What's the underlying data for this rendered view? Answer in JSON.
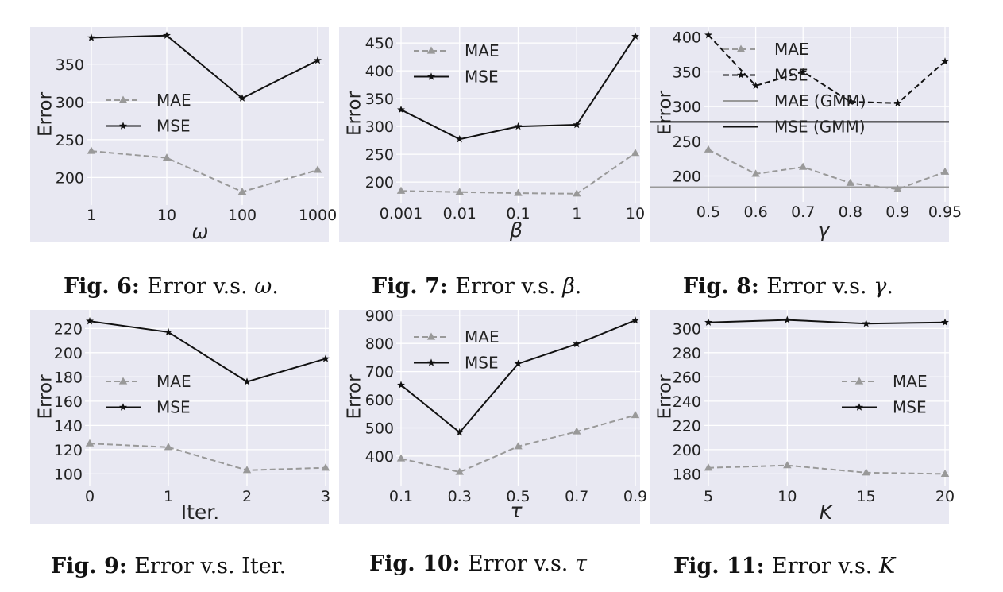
{
  "chart_data": [
    {
      "type": "line",
      "xlabel": "ω",
      "ylabel": "Error",
      "xscale": "log",
      "x": [
        1,
        10,
        100,
        1000
      ],
      "x_tick_labels": [
        "1",
        "10",
        "100",
        "1000"
      ],
      "ylim": [
        172,
        395
      ],
      "y_ticks": [
        200,
        250,
        300,
        350
      ],
      "legend_position": "center-left",
      "series": [
        {
          "name": "MAE",
          "values": [
            235,
            226,
            181,
            210
          ],
          "style": "dashed",
          "marker": "triangle",
          "color": "#999999"
        },
        {
          "name": "MSE",
          "values": [
            385,
            388,
            305,
            355
          ],
          "style": "solid",
          "marker": "star",
          "color": "#111111"
        }
      ],
      "caption": {
        "label": "Fig. 6:",
        "text": "Error v.s. ",
        "symbol": "ω",
        "suffix": "."
      }
    },
    {
      "type": "line",
      "xlabel": "β",
      "ylabel": "Error",
      "xscale": "log",
      "x": [
        0.001,
        0.01,
        0.1,
        1,
        10
      ],
      "x_tick_labels": [
        "0.001",
        "0.01",
        "0.1",
        "1",
        "10"
      ],
      "ylim": [
        173,
        473
      ],
      "y_ticks": [
        200,
        250,
        300,
        350,
        400,
        450
      ],
      "legend_position": "top-left",
      "series": [
        {
          "name": "MAE",
          "values": [
            184,
            182,
            180,
            179,
            252
          ],
          "style": "dashed",
          "marker": "triangle",
          "color": "#999999"
        },
        {
          "name": "MSE",
          "values": [
            330,
            277,
            300,
            303,
            462
          ],
          "style": "solid",
          "marker": "star",
          "color": "#111111"
        }
      ],
      "caption": {
        "label": "Fig. 7:",
        "text": "Error v.s. ",
        "symbol": "β",
        "suffix": "."
      }
    },
    {
      "type": "line",
      "xlabel": "γ",
      "ylabel": "Error",
      "xscale": "category",
      "x": [
        0.5,
        0.6,
        0.7,
        0.8,
        0.9,
        0.95
      ],
      "x_tick_labels": [
        "0.5",
        "0.6",
        "0.7",
        "0.8",
        "0.9",
        "0.95"
      ],
      "ylim": [
        172,
        410
      ],
      "y_ticks": [
        200,
        250,
        300,
        350,
        400
      ],
      "legend_position": "top-left",
      "series": [
        {
          "name": "MAE",
          "values": [
            238,
            203,
            213,
            190,
            181,
            206
          ],
          "style": "dashed",
          "marker": "triangle",
          "color": "#999999"
        },
        {
          "name": "MSE",
          "values": [
            403,
            330,
            350,
            307,
            305,
            365
          ],
          "style": "dashed",
          "marker": "star",
          "color": "#111111"
        },
        {
          "name": "MAE (GMM)",
          "constant": 184,
          "style": "solid",
          "marker": "none",
          "color": "#999999"
        },
        {
          "name": "MSE (GMM)",
          "constant": 278,
          "style": "solid",
          "marker": "none",
          "color": "#111111"
        }
      ],
      "caption": {
        "label": "Fig. 8:",
        "text": "Error v.s. ",
        "symbol": "γ",
        "suffix": "."
      }
    },
    {
      "type": "line",
      "xlabel": "Iter.",
      "ylabel": "Error",
      "xscale": "linear",
      "x": [
        0,
        1,
        2,
        3
      ],
      "x_tick_labels": [
        "0",
        "1",
        "2",
        "3"
      ],
      "ylim": [
        95,
        232
      ],
      "y_ticks": [
        100,
        120,
        140,
        160,
        180,
        200,
        220
      ],
      "legend_position": "center-left",
      "series": [
        {
          "name": "MAE",
          "values": [
            125,
            122,
            103,
            105
          ],
          "style": "dashed",
          "marker": "triangle",
          "color": "#999999"
        },
        {
          "name": "MSE",
          "values": [
            226,
            217,
            176,
            195
          ],
          "style": "solid",
          "marker": "star",
          "color": "#111111"
        }
      ],
      "caption": {
        "label": "Fig. 9:",
        "text": "Error v.s. Iter.",
        "symbol": "",
        "suffix": ""
      }
    },
    {
      "type": "line",
      "xlabel": "τ",
      "ylabel": "Error",
      "xscale": "linear",
      "x": [
        0.1,
        0.3,
        0.5,
        0.7,
        0.9
      ],
      "x_tick_labels": [
        "0.1",
        "0.3",
        "0.5",
        "0.7",
        "0.9"
      ],
      "ylim": [
        315,
        905
      ],
      "y_ticks": [
        400,
        500,
        600,
        700,
        800,
        900
      ],
      "legend_position": "top-left",
      "series": [
        {
          "name": "MAE",
          "values": [
            391,
            343,
            434,
            487,
            545
          ],
          "style": "dashed",
          "marker": "triangle",
          "color": "#999999"
        },
        {
          "name": "MSE",
          "values": [
            652,
            484,
            728,
            798,
            882
          ],
          "style": "solid",
          "marker": "star",
          "color": "#111111"
        }
      ],
      "caption": {
        "label": "Fig. 10:",
        "text": "Error v.s. ",
        "symbol": "τ",
        "suffix": ""
      }
    },
    {
      "type": "line",
      "xlabel": "K",
      "ylabel": "Error",
      "xscale": "linear",
      "x": [
        5,
        10,
        15,
        20
      ],
      "x_tick_labels": [
        "5",
        "10",
        "15",
        "20"
      ],
      "ylim": [
        175,
        312
      ],
      "y_ticks": [
        180,
        200,
        220,
        240,
        260,
        280,
        300
      ],
      "legend_position": "center-right",
      "series": [
        {
          "name": "MAE",
          "values": [
            185,
            187,
            181,
            180
          ],
          "style": "dashed",
          "marker": "triangle",
          "color": "#999999"
        },
        {
          "name": "MSE",
          "values": [
            305,
            307,
            304,
            305
          ],
          "style": "solid",
          "marker": "star",
          "color": "#111111"
        }
      ],
      "caption": {
        "label": "Fig. 11:",
        "text": "Error v.s. ",
        "symbol": "K",
        "suffix": ""
      }
    }
  ],
  "style": {
    "panel_background": "#e8e8f2",
    "grid_color": "#ffffff",
    "text_color": "#222222"
  }
}
